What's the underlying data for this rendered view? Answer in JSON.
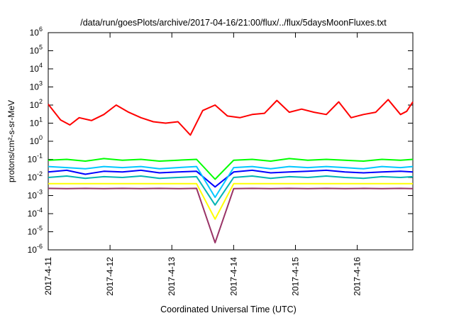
{
  "chart_data": {
    "type": "line",
    "title": "/data/run/goesPlots/archive/2017-04-16/21:00/flux/../flux/5daysMoonFluxes.txt",
    "xlabel": "Coordinated Universal Time (UTC)",
    "ylabel": "protons/cm²-s-sr-MeV",
    "yscale": "log",
    "ylim": [
      1e-06,
      1000000.0
    ],
    "xlim": [
      0,
      5.9
    ],
    "x_ticks": [
      {
        "x": 0,
        "label": "2017-4-11"
      },
      {
        "x": 1,
        "label": "2017-4-12"
      },
      {
        "x": 2,
        "label": "2017-4-13"
      },
      {
        "x": 3,
        "label": "2017-4-14"
      },
      {
        "x": 4,
        "label": "2017-4-15"
      },
      {
        "x": 5,
        "label": "2017-4-16"
      }
    ],
    "y_ticks": [
      {
        "v": 1e-06,
        "label": "10",
        "exp": "-6"
      },
      {
        "v": 1e-05,
        "label": "10",
        "exp": "-5"
      },
      {
        "v": 0.0001,
        "label": "10",
        "exp": "-4"
      },
      {
        "v": 0.001,
        "label": "10",
        "exp": "-3"
      },
      {
        "v": 0.01,
        "label": "10",
        "exp": "-2"
      },
      {
        "v": 0.1,
        "label": "10",
        "exp": "-1"
      },
      {
        "v": 1,
        "label": "10",
        "exp": "0"
      },
      {
        "v": 10,
        "label": "10",
        "exp": "1"
      },
      {
        "v": 100,
        "label": "10",
        "exp": "2"
      },
      {
        "v": 1000,
        "label": "10",
        "exp": "3"
      },
      {
        "v": 10000,
        "label": "10",
        "exp": "4"
      },
      {
        "v": 100000,
        "label": "10",
        "exp": "5"
      },
      {
        "v": 1000000,
        "label": "10",
        "exp": "6"
      }
    ],
    "grid": false,
    "legend": "none",
    "series": [
      {
        "color": "#ff0000",
        "x": [
          0.0,
          0.2,
          0.35,
          0.5,
          0.7,
          0.9,
          1.1,
          1.3,
          1.5,
          1.7,
          1.9,
          2.1,
          2.3,
          2.5,
          2.7,
          2.9,
          3.1,
          3.3,
          3.5,
          3.7,
          3.9,
          4.1,
          4.3,
          4.5,
          4.7,
          4.9,
          5.1,
          5.3,
          5.5,
          5.7,
          5.8,
          5.9
        ],
        "values": [
          110,
          15,
          8,
          20,
          14,
          30,
          100,
          40,
          20,
          12,
          10,
          12,
          2.2,
          50,
          100,
          25,
          20,
          30,
          35,
          180,
          40,
          60,
          40,
          30,
          150,
          20,
          30,
          40,
          200,
          30,
          45,
          150
        ]
      },
      {
        "color": "#00ff00",
        "x": [
          0.0,
          0.3,
          0.6,
          0.9,
          1.2,
          1.5,
          1.8,
          2.1,
          2.4,
          2.7,
          3.0,
          3.3,
          3.6,
          3.9,
          4.2,
          4.5,
          4.8,
          5.1,
          5.4,
          5.7,
          5.9
        ],
        "values": [
          0.09,
          0.1,
          0.08,
          0.11,
          0.09,
          0.1,
          0.08,
          0.09,
          0.1,
          0.008,
          0.09,
          0.1,
          0.08,
          0.11,
          0.09,
          0.1,
          0.09,
          0.08,
          0.1,
          0.09,
          0.1
        ]
      },
      {
        "color": "#0000ff",
        "x": [
          0.0,
          0.3,
          0.6,
          0.9,
          1.2,
          1.5,
          1.8,
          2.1,
          2.4,
          2.7,
          3.0,
          3.3,
          3.6,
          3.9,
          4.2,
          4.5,
          4.8,
          5.1,
          5.4,
          5.7,
          5.9
        ],
        "values": [
          0.02,
          0.025,
          0.015,
          0.022,
          0.02,
          0.025,
          0.018,
          0.02,
          0.022,
          0.003,
          0.02,
          0.025,
          0.018,
          0.02,
          0.022,
          0.025,
          0.02,
          0.018,
          0.02,
          0.022,
          0.02
        ]
      },
      {
        "color": "#00c8ff",
        "x": [
          0.0,
          0.3,
          0.6,
          0.9,
          1.2,
          1.5,
          1.8,
          2.1,
          2.4,
          2.7,
          3.0,
          3.3,
          3.6,
          3.9,
          4.2,
          4.5,
          4.8,
          5.1,
          5.4,
          5.7,
          5.9
        ],
        "values": [
          0.04,
          0.035,
          0.03,
          0.04,
          0.035,
          0.04,
          0.03,
          0.035,
          0.04,
          0.0008,
          0.035,
          0.04,
          0.03,
          0.04,
          0.035,
          0.04,
          0.035,
          0.03,
          0.04,
          0.035,
          0.04
        ]
      },
      {
        "color": "#00b4b4",
        "x": [
          0.0,
          0.3,
          0.6,
          0.9,
          1.2,
          1.5,
          1.8,
          2.1,
          2.4,
          2.7,
          3.0,
          3.3,
          3.6,
          3.9,
          4.2,
          4.5,
          4.8,
          5.1,
          5.4,
          5.7,
          5.9
        ],
        "values": [
          0.01,
          0.012,
          0.009,
          0.011,
          0.01,
          0.012,
          0.009,
          0.01,
          0.011,
          0.0003,
          0.01,
          0.012,
          0.009,
          0.011,
          0.01,
          0.012,
          0.01,
          0.009,
          0.011,
          0.01,
          0.011
        ]
      },
      {
        "color": "#ffff00",
        "x": [
          0.0,
          0.3,
          0.6,
          0.9,
          1.2,
          1.5,
          1.8,
          2.1,
          2.4,
          2.7,
          3.0,
          3.3,
          3.6,
          3.9,
          4.2,
          4.5,
          4.8,
          5.1,
          5.4,
          5.7,
          5.9
        ],
        "values": [
          0.0045,
          0.0045,
          0.0045,
          0.0045,
          0.0045,
          0.0045,
          0.0045,
          0.0045,
          0.0045,
          5e-05,
          0.0045,
          0.0045,
          0.0045,
          0.0045,
          0.0045,
          0.0045,
          0.0045,
          0.0045,
          0.0045,
          0.0045,
          0.0045
        ]
      },
      {
        "color": "#993366",
        "x": [
          0.0,
          0.3,
          0.6,
          0.9,
          1.2,
          1.5,
          1.8,
          2.1,
          2.4,
          2.7,
          3.0,
          3.3,
          3.6,
          3.9,
          4.2,
          4.5,
          4.8,
          5.1,
          5.4,
          5.7,
          5.9
        ],
        "values": [
          0.0025,
          0.0024,
          0.0025,
          0.0024,
          0.0025,
          0.0024,
          0.0025,
          0.0024,
          0.0025,
          2.5e-06,
          0.0024,
          0.0025,
          0.0024,
          0.0025,
          0.0024,
          0.0025,
          0.0024,
          0.0025,
          0.0024,
          0.0025,
          0.0024
        ]
      }
    ]
  }
}
